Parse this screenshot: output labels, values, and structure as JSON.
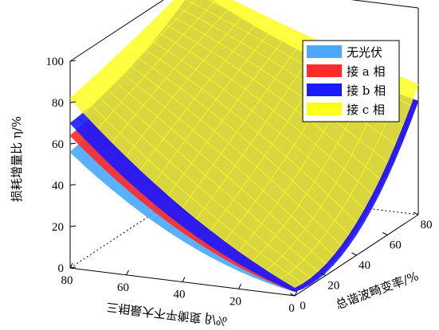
{
  "chart_data": {
    "type": "surface3d",
    "title": "",
    "zlabel": "损耗增量比 η/%",
    "xlabel": "三相最大不平衡度 β/%",
    "ylabel": "总谐波畸变率/%",
    "zlim": [
      0,
      100
    ],
    "xlim": [
      0,
      80
    ],
    "ylim": [
      0,
      80
    ],
    "z_ticks": [
      "0",
      "20",
      "40",
      "60",
      "80",
      "100"
    ],
    "x_ticks": [
      "0",
      "20",
      "40",
      "60",
      "80"
    ],
    "y_ticks": [
      "0",
      "20",
      "40",
      "60",
      "80"
    ],
    "grid": true,
    "legend_position": "top-right",
    "surface_grid": {
      "beta": [
        0,
        40,
        80
      ],
      "thd": [
        0,
        40,
        80
      ]
    },
    "series": [
      {
        "name": "无光伏",
        "color": "#4aa8ff",
        "z": [
          [
            2,
            13,
            55
          ],
          [
            20,
            45,
            68
          ],
          [
            56,
            68,
            90
          ]
        ]
      },
      {
        "name": "接 a 相",
        "color": "#ff2a2a",
        "z": [
          [
            2,
            12,
            55
          ],
          [
            24,
            47,
            70
          ],
          [
            64,
            74,
            94
          ]
        ]
      },
      {
        "name": "接 b 相",
        "color": "#1a1aff",
        "z": [
          [
            2,
            10,
            55
          ],
          [
            27,
            48,
            71
          ],
          [
            70,
            78,
            96
          ]
        ]
      },
      {
        "name": "接 c 相",
        "color": "#ffff1a",
        "z": [
          [
            4,
            16,
            63
          ],
          [
            36,
            58,
            80
          ],
          [
            82,
            90,
            100
          ]
        ]
      }
    ]
  }
}
